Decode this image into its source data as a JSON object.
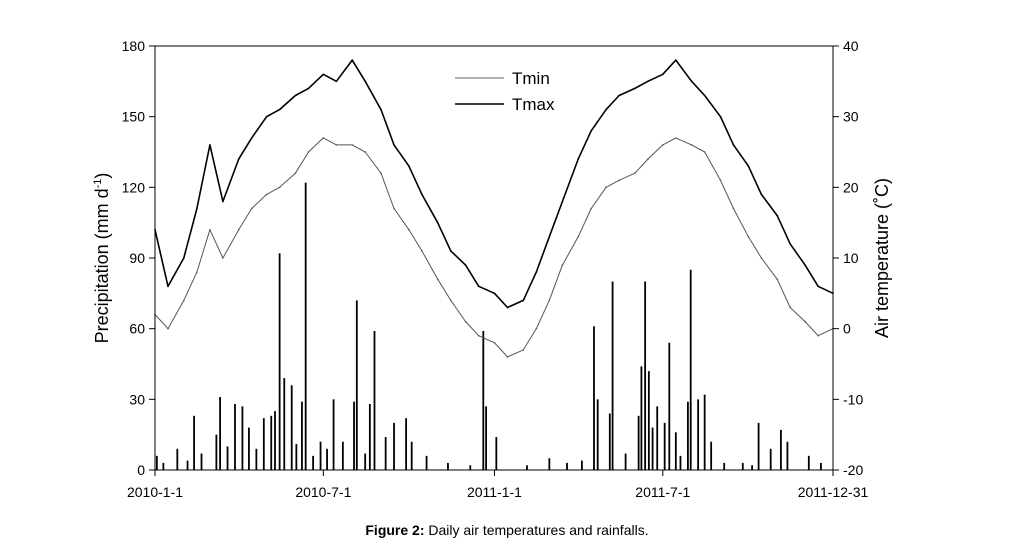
{
  "caption": {
    "label": "Figure 2:",
    "text": "Daily air temperatures and rainfalls."
  },
  "chart_data": {
    "type": "line",
    "title": "",
    "x_tick_labels": [
      "2010-1-1",
      "2010-7-1",
      "2011-1-1",
      "2011-7-1",
      "2011-12-31"
    ],
    "x_tick_dates": [
      "2010-01-01",
      "2010-07-01",
      "2011-01-01",
      "2011-07-01",
      "2011-12-31"
    ],
    "xlim": [
      "2010-01-01",
      "2011-12-31"
    ],
    "ylabel_left": "Precipitation (mm d-1)",
    "ylabel_left_parts": [
      "Precipitation (mm d",
      "-1",
      ")"
    ],
    "ylim_left": [
      0,
      180
    ],
    "yticks_left": [
      "0",
      "30",
      "60",
      "90",
      "120",
      "150",
      "180"
    ],
    "ylabel_right": "Air temperature (˚C)",
    "ylim_right": [
      -20,
      40
    ],
    "yticks_right": [
      "-20",
      "-10",
      "0",
      "10",
      "20",
      "30",
      "40"
    ],
    "legend_position": "top-center",
    "grid": false,
    "series": [
      {
        "name": "Tmin",
        "axis": "right",
        "style": "thin-gray-line",
        "color": "#555555",
        "points": [
          [
            "2010-01-01",
            2
          ],
          [
            "2010-01-15",
            0
          ],
          [
            "2010-02-01",
            4
          ],
          [
            "2010-02-15",
            8
          ],
          [
            "2010-03-01",
            14
          ],
          [
            "2010-03-15",
            10
          ],
          [
            "2010-04-01",
            14
          ],
          [
            "2010-04-15",
            17
          ],
          [
            "2010-05-01",
            19
          ],
          [
            "2010-05-15",
            20
          ],
          [
            "2010-06-01",
            22
          ],
          [
            "2010-06-15",
            25
          ],
          [
            "2010-07-01",
            27
          ],
          [
            "2010-07-15",
            26
          ],
          [
            "2010-08-01",
            26
          ],
          [
            "2010-08-15",
            25
          ],
          [
            "2010-09-01",
            22
          ],
          [
            "2010-09-15",
            17
          ],
          [
            "2010-10-01",
            14
          ],
          [
            "2010-10-15",
            11
          ],
          [
            "2010-11-01",
            7
          ],
          [
            "2010-11-15",
            4
          ],
          [
            "2010-12-01",
            1
          ],
          [
            "2010-12-15",
            -1
          ],
          [
            "2011-01-01",
            -2
          ],
          [
            "2011-01-15",
            -4
          ],
          [
            "2011-02-01",
            -3
          ],
          [
            "2011-02-15",
            0
          ],
          [
            "2011-03-01",
            4
          ],
          [
            "2011-03-15",
            9
          ],
          [
            "2011-04-01",
            13
          ],
          [
            "2011-04-15",
            17
          ],
          [
            "2011-05-01",
            20
          ],
          [
            "2011-05-15",
            21
          ],
          [
            "2011-06-01",
            22
          ],
          [
            "2011-06-15",
            24
          ],
          [
            "2011-07-01",
            26
          ],
          [
            "2011-07-15",
            27
          ],
          [
            "2011-08-01",
            26
          ],
          [
            "2011-08-15",
            25
          ],
          [
            "2011-09-01",
            21
          ],
          [
            "2011-09-15",
            17
          ],
          [
            "2011-10-01",
            13
          ],
          [
            "2011-10-15",
            10
          ],
          [
            "2011-11-01",
            7
          ],
          [
            "2011-11-15",
            3
          ],
          [
            "2011-12-01",
            1
          ],
          [
            "2011-12-15",
            -1
          ],
          [
            "2011-12-31",
            0
          ]
        ]
      },
      {
        "name": "Tmax",
        "axis": "right",
        "style": "thick-black-line",
        "color": "#000000",
        "points": [
          [
            "2010-01-01",
            14
          ],
          [
            "2010-01-15",
            6
          ],
          [
            "2010-02-01",
            10
          ],
          [
            "2010-02-15",
            17
          ],
          [
            "2010-03-01",
            26
          ],
          [
            "2010-03-15",
            18
          ],
          [
            "2010-04-01",
            24
          ],
          [
            "2010-04-15",
            27
          ],
          [
            "2010-05-01",
            30
          ],
          [
            "2010-05-15",
            31
          ],
          [
            "2010-06-01",
            33
          ],
          [
            "2010-06-15",
            34
          ],
          [
            "2010-07-01",
            36
          ],
          [
            "2010-07-15",
            35
          ],
          [
            "2010-08-01",
            38
          ],
          [
            "2010-08-15",
            35
          ],
          [
            "2010-09-01",
            31
          ],
          [
            "2010-09-15",
            26
          ],
          [
            "2010-10-01",
            23
          ],
          [
            "2010-10-15",
            19
          ],
          [
            "2010-11-01",
            15
          ],
          [
            "2010-11-15",
            11
          ],
          [
            "2010-12-01",
            9
          ],
          [
            "2010-12-15",
            6
          ],
          [
            "2011-01-01",
            5
          ],
          [
            "2011-01-15",
            3
          ],
          [
            "2011-02-01",
            4
          ],
          [
            "2011-02-15",
            8
          ],
          [
            "2011-03-01",
            13
          ],
          [
            "2011-03-15",
            18
          ],
          [
            "2011-04-01",
            24
          ],
          [
            "2011-04-15",
            28
          ],
          [
            "2011-05-01",
            31
          ],
          [
            "2011-05-15",
            33
          ],
          [
            "2011-06-01",
            34
          ],
          [
            "2011-06-15",
            35
          ],
          [
            "2011-07-01",
            36
          ],
          [
            "2011-07-15",
            38
          ],
          [
            "2011-08-01",
            35
          ],
          [
            "2011-08-15",
            33
          ],
          [
            "2011-09-01",
            30
          ],
          [
            "2011-09-15",
            26
          ],
          [
            "2011-10-01",
            23
          ],
          [
            "2011-10-15",
            19
          ],
          [
            "2011-11-01",
            16
          ],
          [
            "2011-11-15",
            12
          ],
          [
            "2011-12-01",
            9
          ],
          [
            "2011-12-15",
            6
          ],
          [
            "2011-12-31",
            5
          ]
        ]
      },
      {
        "name": "Precipitation",
        "axis": "left",
        "type": "bar",
        "color": "#000000",
        "points": [
          [
            "2010-01-03",
            6
          ],
          [
            "2010-01-10",
            3
          ],
          [
            "2010-01-25",
            9
          ],
          [
            "2010-02-05",
            4
          ],
          [
            "2010-02-12",
            23
          ],
          [
            "2010-02-20",
            7
          ],
          [
            "2010-03-08",
            15
          ],
          [
            "2010-03-12",
            31
          ],
          [
            "2010-03-20",
            10
          ],
          [
            "2010-03-28",
            28
          ],
          [
            "2010-04-05",
            27
          ],
          [
            "2010-04-12",
            18
          ],
          [
            "2010-04-20",
            9
          ],
          [
            "2010-04-28",
            22
          ],
          [
            "2010-05-06",
            23
          ],
          [
            "2010-05-10",
            25
          ],
          [
            "2010-05-15",
            92
          ],
          [
            "2010-05-20",
            39
          ],
          [
            "2010-05-28",
            36
          ],
          [
            "2010-06-02",
            11
          ],
          [
            "2010-06-08",
            29
          ],
          [
            "2010-06-12",
            122
          ],
          [
            "2010-06-20",
            6
          ],
          [
            "2010-06-28",
            12
          ],
          [
            "2010-07-05",
            9
          ],
          [
            "2010-07-12",
            30
          ],
          [
            "2010-07-22",
            12
          ],
          [
            "2010-08-03",
            29
          ],
          [
            "2010-08-06",
            72
          ],
          [
            "2010-08-15",
            7
          ],
          [
            "2010-08-20",
            28
          ],
          [
            "2010-08-25",
            59
          ],
          [
            "2010-09-06",
            14
          ],
          [
            "2010-09-15",
            20
          ],
          [
            "2010-09-28",
            22
          ],
          [
            "2010-10-04",
            12
          ],
          [
            "2010-10-20",
            6
          ],
          [
            "2010-11-12",
            3
          ],
          [
            "2010-12-06",
            2
          ],
          [
            "2010-12-20",
            59
          ],
          [
            "2010-12-23",
            27
          ],
          [
            "2011-01-03",
            14
          ],
          [
            "2011-02-05",
            2
          ],
          [
            "2011-03-01",
            5
          ],
          [
            "2011-03-20",
            3
          ],
          [
            "2011-04-05",
            4
          ],
          [
            "2011-04-18",
            61
          ],
          [
            "2011-04-22",
            30
          ],
          [
            "2011-05-05",
            24
          ],
          [
            "2011-05-08",
            80
          ],
          [
            "2011-05-22",
            7
          ],
          [
            "2011-06-05",
            23
          ],
          [
            "2011-06-08",
            44
          ],
          [
            "2011-06-12",
            80
          ],
          [
            "2011-06-16",
            42
          ],
          [
            "2011-06-20",
            18
          ],
          [
            "2011-06-25",
            27
          ],
          [
            "2011-07-03",
            20
          ],
          [
            "2011-07-08",
            54
          ],
          [
            "2011-07-15",
            16
          ],
          [
            "2011-07-20",
            6
          ],
          [
            "2011-07-28",
            29
          ],
          [
            "2011-07-31",
            85
          ],
          [
            "2011-08-08",
            30
          ],
          [
            "2011-08-15",
            32
          ],
          [
            "2011-08-22",
            12
          ],
          [
            "2011-09-05",
            3
          ],
          [
            "2011-09-25",
            3
          ],
          [
            "2011-10-05",
            2
          ],
          [
            "2011-10-12",
            20
          ],
          [
            "2011-10-25",
            9
          ],
          [
            "2011-11-05",
            17
          ],
          [
            "2011-11-12",
            12
          ],
          [
            "2011-12-05",
            6
          ],
          [
            "2011-12-18",
            3
          ]
        ]
      }
    ]
  }
}
